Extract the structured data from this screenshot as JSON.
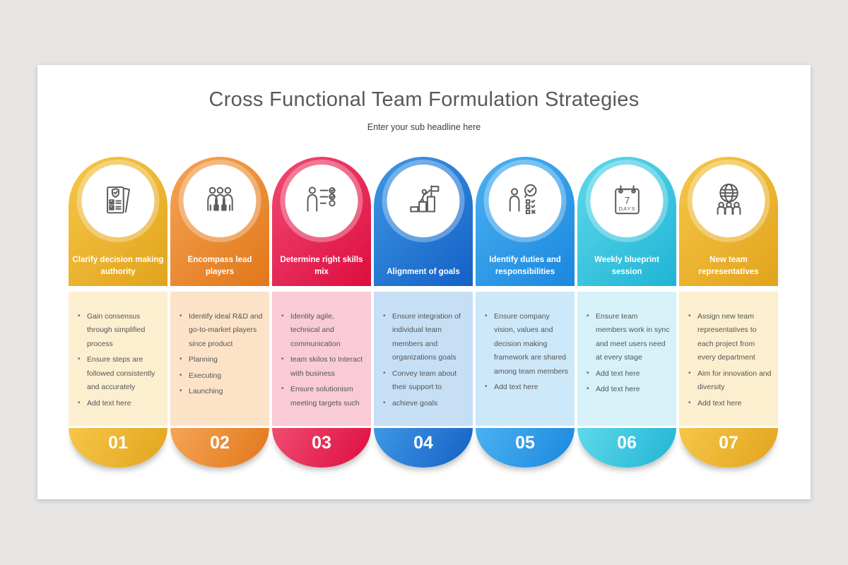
{
  "slide": {
    "title": "Cross Functional Team Formulation Strategies",
    "subtitle": "Enter your sub headline here",
    "page_background": "#e7e5e4",
    "slide_background": "#ffffff"
  },
  "columns": [
    {
      "number": "01",
      "title": "Clarify decision making authority",
      "icon": "checklist-shield-icon",
      "colors": {
        "start": "#f5c748",
        "end": "#e2a31d",
        "body": "#fcefd0"
      },
      "bullets": [
        "Gain consensus through simplified process",
        "Ensure steps are followed consistently and accurately",
        "Add text here"
      ]
    },
    {
      "number": "02",
      "title": "Encompass lead players",
      "icon": "team-group-icon",
      "colors": {
        "start": "#f5a455",
        "end": "#e1771a",
        "body": "#fce3c8"
      },
      "bullets": [
        "Identify ideal R&D and go-to-market players since product",
        "Planning",
        "Executing",
        "Launching"
      ]
    },
    {
      "number": "03",
      "title": "Determine right skills mix",
      "icon": "skills-checklist-icon",
      "colors": {
        "start": "#f04b71",
        "end": "#dd0d40",
        "body": "#f9cbd7"
      },
      "bullets": [
        "Identity agile, technical and communication",
        "team skilos to Interact with business",
        "Ensure solutionism meeting targets such"
      ]
    },
    {
      "number": "04",
      "title": "Alignment of goals",
      "icon": "goal-climb-flag-icon",
      "colors": {
        "start": "#3f98e4",
        "end": "#1460c6",
        "body": "#c6dff5"
      },
      "bullets": [
        "Ensure integration of individual team members and organizations goals",
        "Convey team about their support to",
        "achieve goals"
      ]
    },
    {
      "number": "05",
      "title": "Identify duties and responsibilities",
      "icon": "duties-checklist-icon",
      "colors": {
        "start": "#4ab2f2",
        "end": "#1b87de",
        "body": "#cde8f9"
      },
      "bullets": [
        "Ensure company vision, values and decision making framework are shared among team members",
        "Add text here"
      ]
    },
    {
      "number": "06",
      "title": "Weekly blueprint session",
      "icon": "calendar-7days-icon",
      "icon_text": {
        "day_count": "7",
        "label": "DAYS"
      },
      "colors": {
        "start": "#5fd9ea",
        "end": "#1fb4d5",
        "body": "#d6f2f8"
      },
      "bullets": [
        "Ensure team members work in sync and meet users need at every stage",
        "Add text here",
        "Add text here"
      ]
    },
    {
      "number": "07",
      "title": "New team representatives",
      "icon": "globe-team-icon",
      "colors": {
        "start": "#f5c748",
        "end": "#e2a31d",
        "body": "#fcefd0"
      },
      "bullets": [
        "Assign new team representatives to each project from every department",
        "Aim for innovation and diversity",
        "Add text here"
      ]
    }
  ]
}
